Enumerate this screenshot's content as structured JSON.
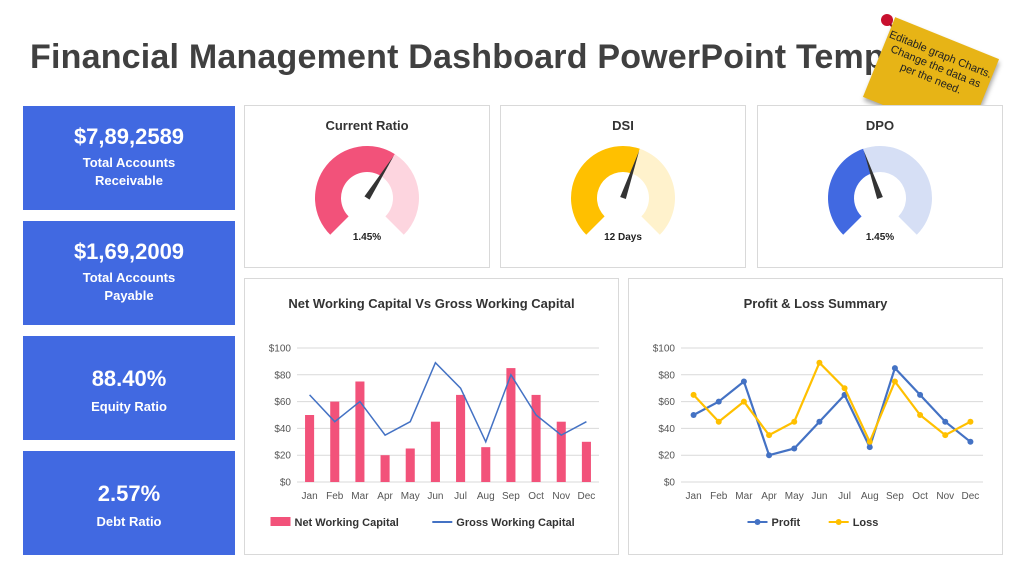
{
  "title": "Financial Management Dashboard PowerPoint Template",
  "sticky_note": "Editable graph Charts. Change the data as per the need.",
  "colors": {
    "kpi_bg": "#4169e1",
    "pink": "#f2527a",
    "pink_light": "#fdd5df",
    "gold": "#ffc000",
    "gold_light": "#fff2cc",
    "blue": "#4472c4",
    "blue_light": "#d6dff5",
    "note": "#e7b416"
  },
  "kpis": [
    {
      "value": "$7,89,2589",
      "label_line1": "Total Accounts",
      "label_line2": "Receivable"
    },
    {
      "value": "$1,69,2009",
      "label_line1": "Total Accounts",
      "label_line2": "Payable"
    },
    {
      "value": "88.40%",
      "label_line1": "Equity Ratio",
      "label_line2": ""
    },
    {
      "value": "2.57%",
      "label_line1": "Debt Ratio",
      "label_line2": ""
    }
  ],
  "gauges": [
    {
      "title": "Current Ratio",
      "label": "1.45%",
      "fraction": 0.62,
      "color": "#f2527a",
      "track": "#fdd5df"
    },
    {
      "title": "DSI",
      "label": "12 Days",
      "fraction": 0.57,
      "color": "#ffc000",
      "track": "#fff2cc"
    },
    {
      "title": "DPO",
      "label": "1.45%",
      "fraction": 0.43,
      "color": "#4169e1",
      "track": "#d6dff5"
    }
  ],
  "chart_data": [
    {
      "type": "bar",
      "title": "Net Working Capital Vs Gross Working Capital",
      "categories": [
        "Jan",
        "Feb",
        "Mar",
        "Apr",
        "May",
        "Jun",
        "Jul",
        "Aug",
        "Sep",
        "Oct",
        "Nov",
        "Dec"
      ],
      "yticks": [
        "$0",
        "$20",
        "$40",
        "$60",
        "$80",
        "$100"
      ],
      "ylim": [
        0,
        100
      ],
      "grid": true,
      "legend": "bottom",
      "series": [
        {
          "name": "Net Working Capital",
          "kind": "bar",
          "color": "#f2527a",
          "values": [
            50,
            60,
            75,
            20,
            25,
            45,
            65,
            26,
            85,
            65,
            45,
            30
          ]
        },
        {
          "name": "Gross Working Capital",
          "kind": "line",
          "color": "#4472c4",
          "values": [
            65,
            45,
            60,
            35,
            45,
            89,
            70,
            30,
            80,
            50,
            35,
            45
          ]
        }
      ]
    },
    {
      "type": "line",
      "title": "Profit & Loss Summary",
      "categories": [
        "Jan",
        "Feb",
        "Mar",
        "Apr",
        "May",
        "Jun",
        "Jul",
        "Aug",
        "Sep",
        "Oct",
        "Nov",
        "Dec"
      ],
      "yticks": [
        "$0",
        "$20",
        "$40",
        "$60",
        "$80",
        "$100"
      ],
      "ylim": [
        0,
        100
      ],
      "grid": true,
      "legend": "bottom",
      "series": [
        {
          "name": "Profit",
          "kind": "line",
          "color": "#4472c4",
          "values": [
            50,
            60,
            75,
            20,
            25,
            45,
            65,
            26,
            85,
            65,
            45,
            30
          ]
        },
        {
          "name": "Loss",
          "kind": "line",
          "color": "#ffc000",
          "values": [
            65,
            45,
            60,
            35,
            45,
            89,
            70,
            30,
            75,
            50,
            35,
            45
          ]
        }
      ]
    }
  ]
}
